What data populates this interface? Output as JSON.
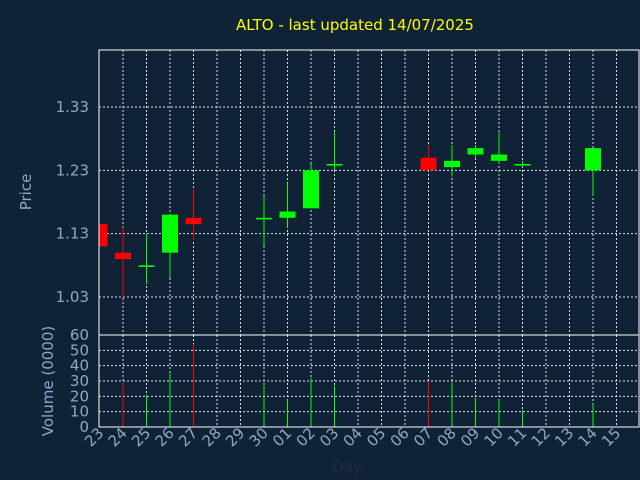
{
  "title": "ALTO - last updated 14/07/2025",
  "colors": {
    "background": "#102236",
    "title": "#ffff00",
    "text": "#8fa8c8",
    "frame": "#ffffff",
    "up": "#00ff00",
    "down": "#ff0000"
  },
  "chart_data": [
    {
      "type": "candlestick",
      "ylabel": "Price",
      "ylim": [
        0.97,
        1.42
      ],
      "yticks": [
        1.03,
        1.13,
        1.23,
        1.33
      ],
      "grid": true,
      "candles": [
        {
          "day": "23",
          "open": 1.145,
          "high": 1.145,
          "low": 1.11,
          "close": 1.11
        },
        {
          "day": "24",
          "open": 1.1,
          "high": 1.14,
          "low": 1.03,
          "close": 1.09
        },
        {
          "day": "25",
          "open": 1.08,
          "high": 1.13,
          "low": 1.05,
          "close": 1.08
        },
        {
          "day": "26",
          "open": 1.1,
          "high": 1.16,
          "low": 1.06,
          "close": 1.16
        },
        {
          "day": "27",
          "open": 1.155,
          "high": 1.2,
          "low": 1.12,
          "close": 1.145
        },
        {
          "day": "30",
          "open": 1.155,
          "high": 1.19,
          "low": 1.11,
          "close": 1.155
        },
        {
          "day": "01",
          "open": 1.155,
          "high": 1.21,
          "low": 1.14,
          "close": 1.165
        },
        {
          "day": "02",
          "open": 1.17,
          "high": 1.24,
          "low": 1.17,
          "close": 1.23
        },
        {
          "day": "03",
          "open": 1.24,
          "high": 1.29,
          "low": 1.23,
          "close": 1.24
        },
        {
          "day": "07",
          "open": 1.25,
          "high": 1.27,
          "low": 1.23,
          "close": 1.23
        },
        {
          "day": "08",
          "open": 1.235,
          "high": 1.27,
          "low": 1.22,
          "close": 1.245
        },
        {
          "day": "09",
          "open": 1.255,
          "high": 1.27,
          "low": 1.25,
          "close": 1.265
        },
        {
          "day": "10",
          "open": 1.245,
          "high": 1.29,
          "low": 1.24,
          "close": 1.255
        },
        {
          "day": "11",
          "open": 1.24,
          "high": 1.245,
          "low": 1.235,
          "close": 1.24
        },
        {
          "day": "14",
          "open": 1.23,
          "high": 1.265,
          "low": 1.19,
          "close": 1.265
        }
      ]
    },
    {
      "type": "bar",
      "ylabel": "Volume (0000)",
      "xlabel": "Day",
      "ylim": [
        0,
        60
      ],
      "yticks": [
        0,
        10,
        20,
        30,
        40,
        50,
        60
      ],
      "grid": true,
      "categories": [
        "23",
        "24",
        "25",
        "26",
        "27",
        "28",
        "29",
        "30",
        "01",
        "02",
        "03",
        "04",
        "05",
        "06",
        "07",
        "08",
        "09",
        "10",
        "11",
        "12",
        "13",
        "14",
        "15"
      ],
      "values": [
        0,
        29,
        21,
        35,
        54,
        0,
        0,
        27,
        18,
        32,
        27,
        0,
        0,
        0,
        30,
        29,
        19,
        18,
        11,
        0,
        0,
        15,
        0
      ],
      "bar_direction": [
        "none",
        "down",
        "up",
        "up",
        "down",
        "none",
        "none",
        "up",
        "up",
        "up",
        "up",
        "none",
        "none",
        "none",
        "down",
        "up",
        "up",
        "up",
        "up",
        "none",
        "none",
        "up",
        "none"
      ]
    }
  ]
}
